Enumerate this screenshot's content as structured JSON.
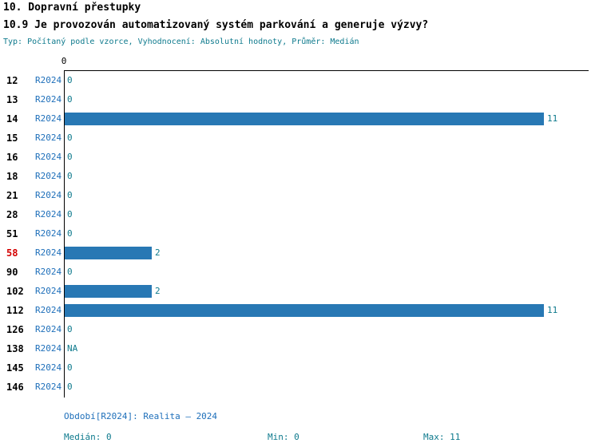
{
  "header": {
    "title": "10. Dopravní přestupky",
    "subtitle": "10.9 Je provozován automatizovaný systém parkování a generuje výzvy?",
    "meta": "Typ: Počítaný podle vzorce, Vyhodnocení: Absolutní hodnoty, Průměr: Medián"
  },
  "axis": {
    "top_tick_label": "0"
  },
  "chart_data": {
    "type": "bar",
    "orientation": "horizontal",
    "title": "10.9 Je provozován automatizovaný systém parkování a generuje výzvy?",
    "categories": [
      "12",
      "13",
      "14",
      "15",
      "16",
      "18",
      "21",
      "28",
      "51",
      "58",
      "90",
      "102",
      "112",
      "126",
      "138",
      "145",
      "146"
    ],
    "series_label": "R2024",
    "values": [
      0,
      0,
      11,
      0,
      0,
      0,
      0,
      0,
      0,
      2,
      0,
      2,
      11,
      0,
      "NA",
      0,
      0
    ],
    "value_labels": [
      "0",
      "0",
      "11",
      "0",
      "0",
      "0",
      "0",
      "0",
      "0",
      "2",
      "0",
      "2",
      "11",
      "0",
      "NA",
      "0",
      "0"
    ],
    "highlight_category": "58",
    "xlim": [
      0,
      11
    ],
    "grid": false,
    "legend_position": "none",
    "bar_color": "#2878b4",
    "highlight_color": "#d40000"
  },
  "footer": {
    "period": "Období[R2024]: Realita – 2024",
    "median": "Medián: 0",
    "min": "Min: 0",
    "max": "Max: 11"
  }
}
